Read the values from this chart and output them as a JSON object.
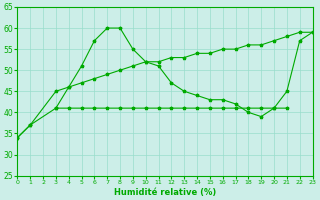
{
  "xlabel": "Humidité relative (%)",
  "xlim": [
    0,
    23
  ],
  "ylim": [
    25,
    65
  ],
  "yticks": [
    25,
    30,
    35,
    40,
    45,
    50,
    55,
    60,
    65
  ],
  "xticks": [
    0,
    1,
    2,
    3,
    4,
    5,
    6,
    7,
    8,
    9,
    10,
    11,
    12,
    13,
    14,
    15,
    16,
    17,
    18,
    19,
    20,
    21,
    22,
    23
  ],
  "bg_color": "#cceee8",
  "grid_color": "#99ddcc",
  "line_color": "#00aa00",
  "line1_x": [
    0,
    1,
    3,
    4,
    5,
    6,
    7,
    8,
    9,
    10,
    11,
    12,
    13,
    14,
    15,
    16,
    17,
    18,
    19,
    20,
    21
  ],
  "line1_y": [
    34,
    37,
    41,
    41,
    41,
    41,
    41,
    41,
    41,
    41,
    41,
    41,
    41,
    41,
    41,
    41,
    41,
    41,
    41,
    41,
    41
  ],
  "line2_x": [
    0,
    1,
    3,
    4,
    5,
    6,
    7,
    8,
    9,
    10,
    11,
    12,
    13,
    14,
    15,
    16,
    17,
    18,
    19,
    20,
    21,
    22,
    23
  ],
  "line2_y": [
    34,
    37,
    45,
    46,
    51,
    57,
    60,
    60,
    55,
    52,
    51,
    47,
    45,
    44,
    43,
    43,
    42,
    40,
    39,
    41,
    45,
    57,
    59
  ],
  "line3_x": [
    3,
    4,
    5,
    6,
    7,
    8,
    9,
    10,
    11,
    12,
    13,
    14,
    15,
    16,
    17,
    18,
    19,
    20,
    21,
    22,
    23
  ],
  "line3_y": [
    41,
    46,
    47,
    48,
    49,
    50,
    51,
    52,
    52,
    53,
    53,
    54,
    54,
    55,
    55,
    56,
    56,
    57,
    58,
    59,
    59
  ]
}
